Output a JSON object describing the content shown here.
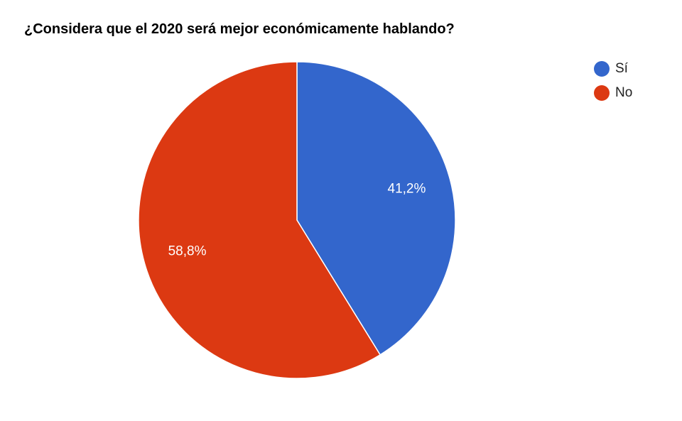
{
  "chart_data": {
    "type": "pie",
    "title": "¿Considera que el 2020 será mejor económicamente hablando?",
    "slices": [
      {
        "label": "Sí",
        "value": 41.2,
        "display": "41,2%",
        "color": "#3366cc"
      },
      {
        "label": "No",
        "value": 58.8,
        "display": "58,8%",
        "color": "#dc3912"
      }
    ],
    "legend_position": "top-right",
    "start_angle": "12 o'clock",
    "direction": "clockwise"
  }
}
